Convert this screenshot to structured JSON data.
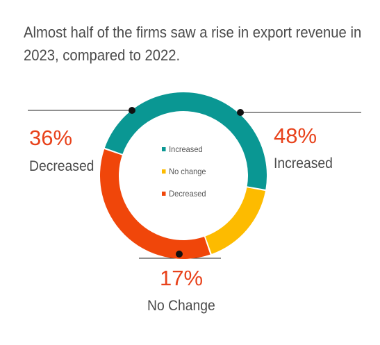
{
  "title_lines": [
    "Almost half of the firms saw a rise in export revenue in",
    "2023, compared to 2022."
  ],
  "colors": {
    "increased": "#0a9793",
    "no_change": "#fdbb00",
    "decreased": "#f0460a",
    "pct_text": "#e8421b"
  },
  "legend": [
    {
      "label": "Increased"
    },
    {
      "label": "No change"
    },
    {
      "label": "Decreased"
    }
  ],
  "callouts": {
    "increased": {
      "pct": "48%",
      "label": "Increased"
    },
    "no_change": {
      "pct": "17%",
      "label": "No Change"
    },
    "decreased": {
      "pct": "36%",
      "label": "Decreased"
    }
  },
  "chart_data": {
    "type": "pie",
    "variant": "donut",
    "categories": [
      "Increased",
      "No change",
      "Decreased"
    ],
    "values": [
      48,
      17,
      36
    ],
    "unit": "%",
    "legend_position": "center"
  }
}
